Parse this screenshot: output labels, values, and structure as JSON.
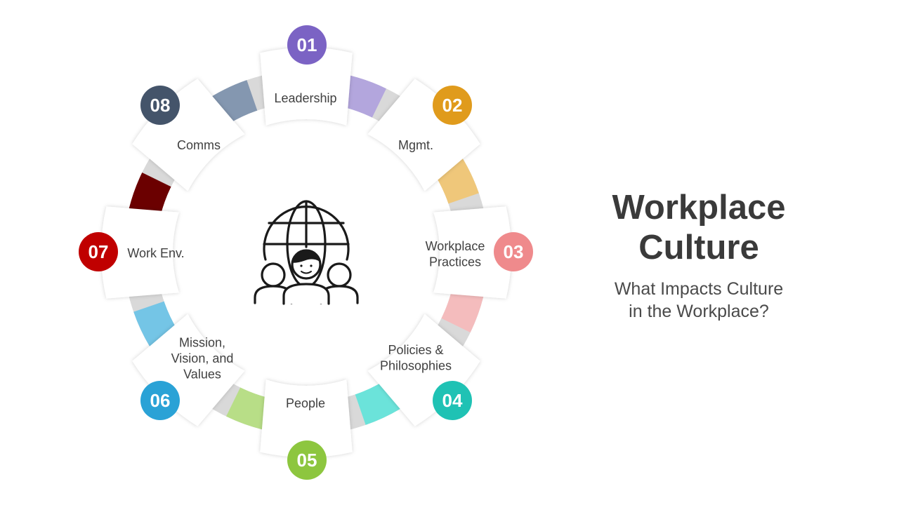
{
  "title": {
    "line1": "Workplace",
    "line2": "Culture"
  },
  "subtitle": {
    "line1": "What Impacts Culture",
    "line2": "in the Workplace?"
  },
  "center_icon": "team-globe-icon",
  "ring_color": "#d9d9d9",
  "segments": [
    {
      "num": "01",
      "label_lines": [
        "Leadership"
      ],
      "color": "#7b63c4",
      "accent": "#b3a6dd"
    },
    {
      "num": "02",
      "label_lines": [
        "Mgmt."
      ],
      "color": "#e09b1c",
      "accent": "#efc77a"
    },
    {
      "num": "03",
      "label_lines": [
        "Workplace",
        "Practices"
      ],
      "color": "#ef8a8c",
      "accent": "#f4bcbd"
    },
    {
      "num": "04",
      "label_lines": [
        "Policies &",
        "Philosophies"
      ],
      "color": "#1fc2b4",
      "accent": "#6be3da"
    },
    {
      "num": "05",
      "label_lines": [
        "People"
      ],
      "color": "#8dc63f",
      "accent": "#b8de87"
    },
    {
      "num": "06",
      "label_lines": [
        "Mission,",
        "Vision, and",
        "Values"
      ],
      "color": "#2aa2d6",
      "accent": "#74c5e6"
    },
    {
      "num": "07",
      "label_lines": [
        "Work Env."
      ],
      "color": "#c00000",
      "accent": "#6b0000"
    },
    {
      "num": "08",
      "label_lines": [
        "Comms"
      ],
      "color": "#44546a",
      "accent": "#8497b0"
    }
  ]
}
